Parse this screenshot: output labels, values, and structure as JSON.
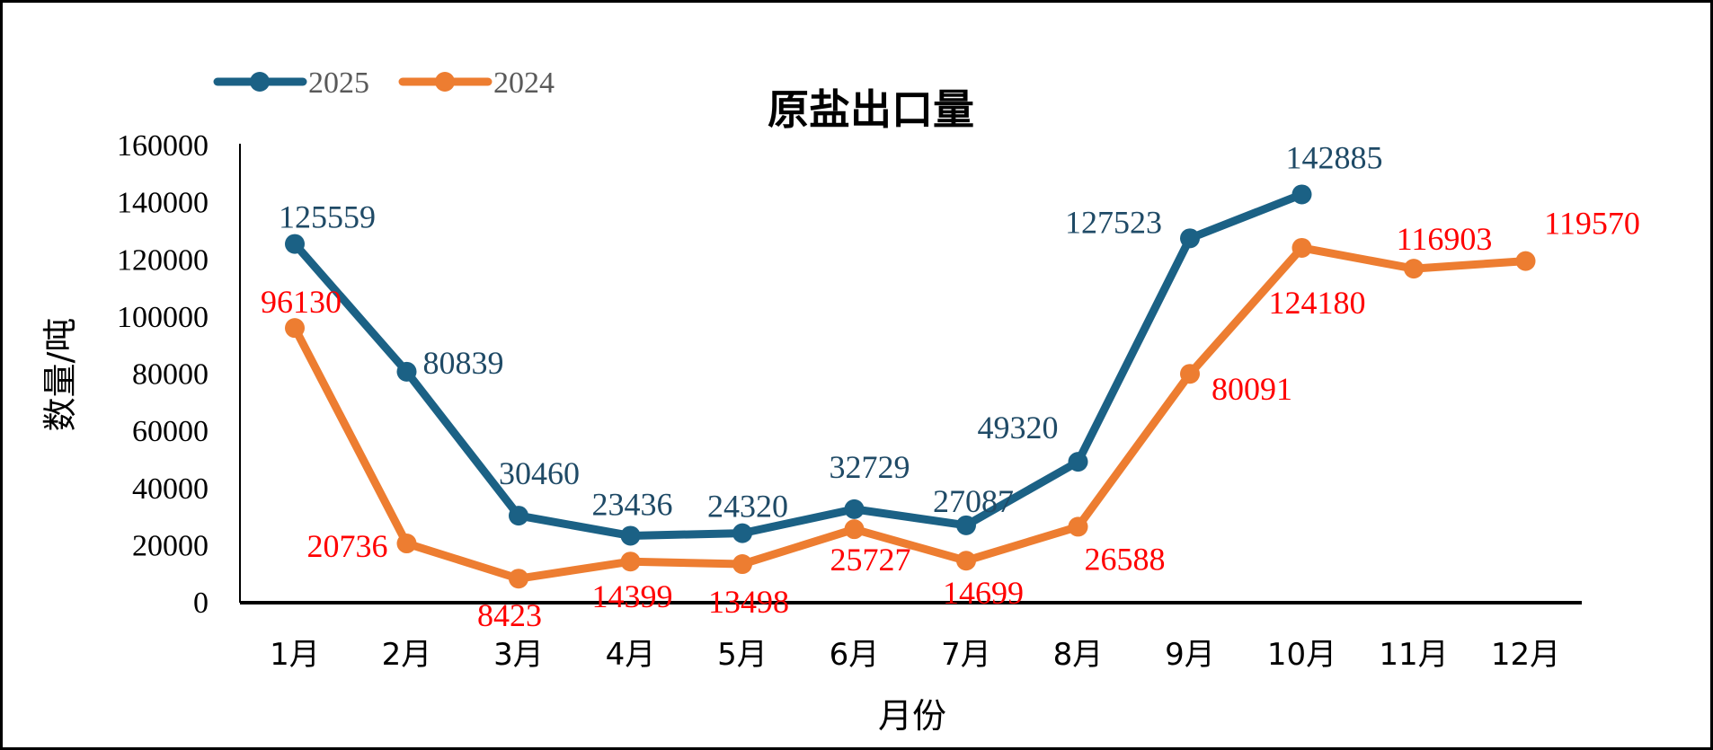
{
  "chart_data": {
    "type": "line",
    "title": "原盐出口量",
    "xlabel": "月份",
    "ylabel": "数量/吨",
    "categories": [
      "1月",
      "2月",
      "3月",
      "4月",
      "5月",
      "6月",
      "7月",
      "8月",
      "9月",
      "10月",
      "11月",
      "12月"
    ],
    "ylim": [
      0,
      160000
    ],
    "yticks": [
      0,
      20000,
      40000,
      60000,
      80000,
      100000,
      120000,
      140000,
      160000
    ],
    "grid": false,
    "legend_position": "top-left",
    "series": [
      {
        "name": "2025",
        "color": "#1b6185",
        "label_color": "#1f4a66",
        "values": [
          125559,
          80839,
          30460,
          23436,
          24320,
          32729,
          27087,
          49320,
          127523,
          142885,
          null,
          null
        ]
      },
      {
        "name": "2024",
        "color": "#ed7d31",
        "label_color": "#ff0000",
        "values": [
          96130,
          20736,
          8423,
          14399,
          13498,
          25727,
          14699,
          26588,
          80091,
          124180,
          116903,
          119570
        ]
      }
    ]
  }
}
